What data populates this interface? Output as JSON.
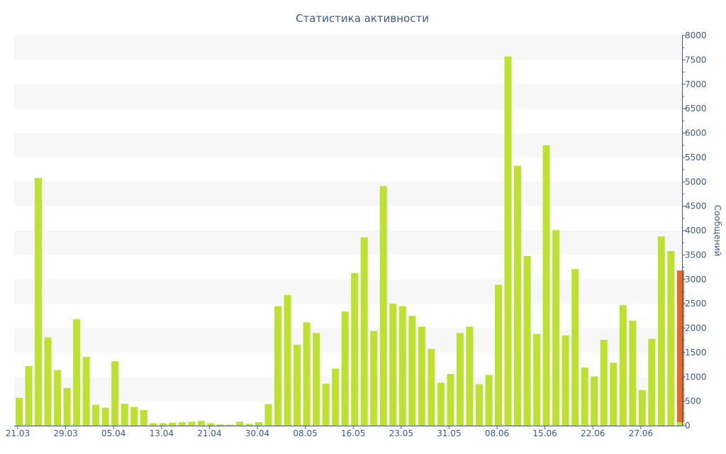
{
  "chart_data": {
    "type": "bar",
    "title": "Статистика активности",
    "xlabel": "",
    "ylabel": "Сообщений",
    "ylim": [
      0,
      8000
    ],
    "yticks": [
      0,
      500,
      1000,
      1500,
      2000,
      2500,
      3000,
      3500,
      4000,
      4500,
      5000,
      5500,
      6000,
      6500,
      7000,
      7500,
      8000
    ],
    "grid": "horizontal-bands",
    "y_axis_position": "right",
    "colors": {
      "bar": "#bde130",
      "highlight": "#e26a2c",
      "axis": "#3d5a8f",
      "band": "#f7f7f7"
    },
    "x_tick_labels": [
      {
        "index": 0,
        "label": "21.03"
      },
      {
        "index": 5,
        "label": "29.03"
      },
      {
        "index": 10,
        "label": "05.04"
      },
      {
        "index": 15,
        "label": "13.04"
      },
      {
        "index": 20,
        "label": "21.04"
      },
      {
        "index": 25,
        "label": "30.04"
      },
      {
        "index": 30,
        "label": "08.05"
      },
      {
        "index": 35,
        "label": "16.05"
      },
      {
        "index": 40,
        "label": "23.05"
      },
      {
        "index": 45,
        "label": "31.05"
      },
      {
        "index": 50,
        "label": "08.06"
      },
      {
        "index": 55,
        "label": "15.06"
      },
      {
        "index": 60,
        "label": "22.06"
      },
      {
        "index": 65,
        "label": "27.06"
      }
    ],
    "values": [
      570,
      1220,
      5080,
      1810,
      1140,
      770,
      2180,
      1410,
      430,
      370,
      1320,
      450,
      380,
      320,
      50,
      50,
      60,
      70,
      80,
      100,
      50,
      25,
      20,
      80,
      35,
      70,
      440,
      2450,
      2680,
      1660,
      2120,
      1900,
      860,
      1170,
      2340,
      3130,
      3860,
      1940,
      4910,
      2500,
      2450,
      2250,
      2030,
      1570,
      880,
      1060,
      1900,
      2030,
      850,
      1040,
      2890,
      7570,
      5330,
      3480,
      1880,
      5750,
      4010,
      1850,
      3210,
      1190,
      1010,
      1760,
      1290,
      2470,
      2150,
      730,
      1780,
      3880,
      3580
    ],
    "highlight_bar": {
      "value": 3180,
      "base_value": 70
    }
  }
}
